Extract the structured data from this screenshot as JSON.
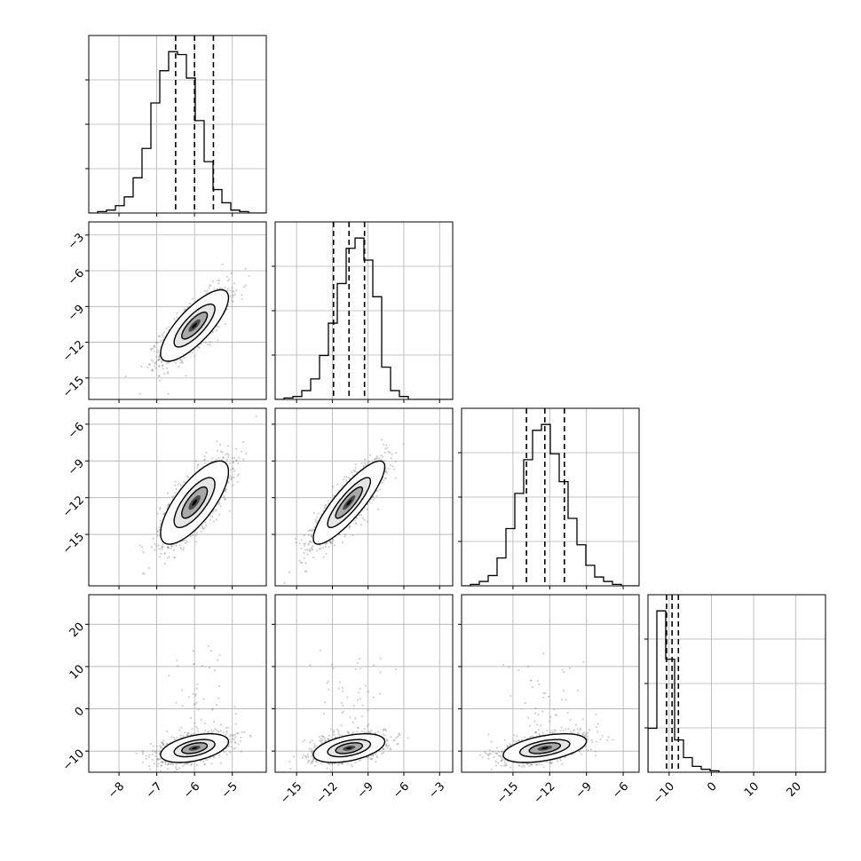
{
  "chart_data": {
    "type": "corner",
    "n_params": 4,
    "axis_labels": [
      "",
      "",
      "",
      ""
    ],
    "colors": {
      "line": "#000000",
      "grid": "#b0b0b0",
      "points": "#7a7a7a",
      "frame": "#000000"
    },
    "ranges": [
      [
        -8.8,
        -4.1
      ],
      [
        -16.8,
        -1.9
      ],
      [
        -19.2,
        -4.7
      ],
      [
        -15.0,
        27.0
      ]
    ],
    "tick_labels": [
      [
        "-8",
        "-7",
        "-6",
        "-5"
      ],
      [
        "-15",
        "-12",
        "-9",
        "-6",
        "-3"
      ],
      [
        "-15",
        "-12",
        "-9",
        "-6"
      ],
      [
        "-10",
        "0",
        "10",
        "20"
      ]
    ],
    "tick_values": [
      [
        -8,
        -7,
        -6,
        -5
      ],
      [
        -15,
        -12,
        -9,
        -6,
        -3
      ],
      [
        -15,
        -12,
        -9,
        -6
      ],
      [
        -10,
        0,
        10,
        20
      ]
    ],
    "y_tick_labels": [
      [],
      [
        "-3",
        "-6",
        "-9",
        "-12",
        "-15"
      ],
      [
        "-6",
        "-9",
        "-12",
        "-15"
      ],
      [
        "20",
        "10",
        "0",
        "-10"
      ]
    ],
    "y_tick_values": [
      [],
      [
        -3,
        -6,
        -9,
        -12,
        -15
      ],
      [
        -6,
        -9,
        -12,
        -15
      ],
      [
        20,
        10,
        0,
        -10
      ]
    ],
    "quantiles": [
      [
        -6.5,
        -6.0,
        -5.5
      ],
      [
        -11.9,
        -10.6,
        -9.3
      ],
      [
        -13.9,
        -12.4,
        -10.8
      ],
      [
        -10.6,
        -9.3,
        -7.8
      ]
    ],
    "histograms": [
      {
        "edges_min": -8.8,
        "edges_max": -4.1,
        "counts": [
          0,
          1,
          2,
          5,
          11,
          24,
          44,
          75,
          97,
          110,
          108,
          92,
          63,
          35,
          16,
          7,
          2,
          1,
          0,
          0
        ]
      },
      {
        "edges_min": -16.8,
        "edges_max": -1.9,
        "counts": [
          0,
          1,
          2,
          6,
          14,
          30,
          52,
          79,
          103,
          110,
          95,
          70,
          22,
          6,
          2,
          0,
          0,
          0,
          0,
          0
        ]
      },
      {
        "edges_min": -19.2,
        "edges_max": -4.7,
        "counts": [
          0,
          1,
          3,
          7,
          19,
          39,
          63,
          86,
          106,
          110,
          90,
          71,
          46,
          28,
          14,
          6,
          3,
          1,
          0,
          0
        ]
      },
      {
        "edges_min": -15.0,
        "edges_max": 27.0,
        "counts": [
          30,
          110,
          77,
          22,
          10,
          4,
          2,
          1,
          0,
          0,
          0,
          0,
          0,
          0,
          0,
          0,
          0,
          0,
          0,
          0
        ]
      }
    ],
    "pairs": [
      {
        "i": 1,
        "j": 0,
        "cx": -6.0,
        "cy": -10.6,
        "sx": 0.45,
        "sy": 1.5,
        "rho": 0.78
      },
      {
        "i": 2,
        "j": 0,
        "cx": -6.0,
        "cy": -12.4,
        "sx": 0.45,
        "sy": 1.7,
        "rho": 0.74
      },
      {
        "i": 2,
        "j": 1,
        "cx": -10.6,
        "cy": -12.4,
        "sx": 1.5,
        "sy": 1.7,
        "rho": 0.86
      },
      {
        "i": 3,
        "j": 0,
        "cx": -6.0,
        "cy": -9.3,
        "sx": 0.45,
        "sy": 1.7,
        "rho": 0.45
      },
      {
        "i": 3,
        "j": 1,
        "cx": -10.6,
        "cy": -9.3,
        "sx": 1.5,
        "sy": 1.7,
        "rho": 0.45
      },
      {
        "i": 3,
        "j": 2,
        "cx": -12.4,
        "cy": -9.3,
        "sx": 1.7,
        "sy": 1.7,
        "rho": 0.48
      }
    ]
  }
}
